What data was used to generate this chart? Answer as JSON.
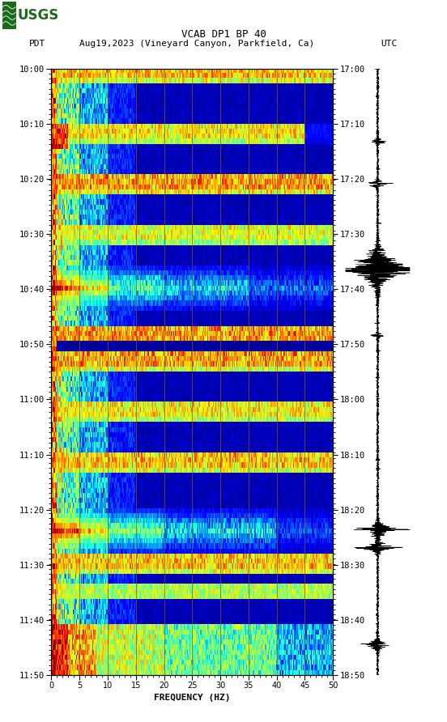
{
  "title_line1": "VCAB DP1 BP 40",
  "title_line2_left": "PDT",
  "title_line2_mid": "Aug19,2023 (Vineyard Canyon, Parkfield, Ca)",
  "title_line2_right": "UTC",
  "xlabel": "FREQUENCY (HZ)",
  "freq_min": 0,
  "freq_max": 50,
  "freq_ticks": [
    0,
    5,
    10,
    15,
    20,
    25,
    30,
    35,
    40,
    45,
    50
  ],
  "time_labels_left": [
    "10:00",
    "10:10",
    "10:20",
    "10:30",
    "10:40",
    "10:50",
    "11:00",
    "11:10",
    "11:20",
    "11:30",
    "11:40",
    "11:50"
  ],
  "time_labels_right": [
    "17:00",
    "17:10",
    "17:20",
    "17:30",
    "17:40",
    "17:50",
    "18:00",
    "18:10",
    "18:20",
    "18:30",
    "18:40",
    "18:50"
  ],
  "n_time_steps": 120,
  "n_freq_bins": 300,
  "cmap": "jet",
  "bg_color": "#ffffff",
  "spectrogram_bg": "#000080",
  "grid_color": "#806000",
  "grid_freq_lines": [
    5,
    10,
    15,
    20,
    25,
    30,
    35,
    40,
    45
  ],
  "usgs_green": "#1a6b1a",
  "figsize": [
    5.52,
    8.92
  ],
  "dpi": 100
}
